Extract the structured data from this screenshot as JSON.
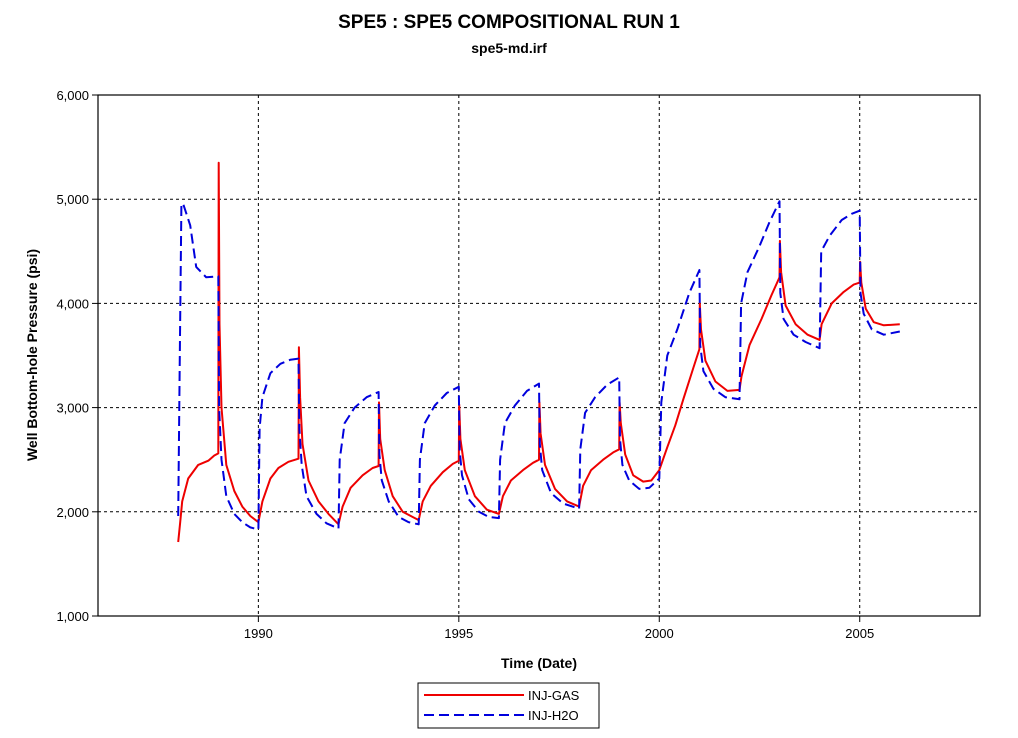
{
  "chart_data": {
    "type": "line",
    "title": "SPE5 :  SPE5 COMPOSITIONAL RUN 1",
    "subtitle": "spe5-md.irf",
    "xlabel": "Time (Date)",
    "ylabel": "Well Bottom-hole Pressure (psi)",
    "xlim": [
      1986.0,
      2008.0
    ],
    "ylim": [
      1000,
      6000
    ],
    "x_ticks": [
      1990,
      1995,
      2000,
      2005
    ],
    "x_tick_labels": [
      "1990",
      "1995",
      "2000",
      "2005"
    ],
    "y_ticks": [
      1000,
      2000,
      3000,
      4000,
      5000,
      6000
    ],
    "y_tick_labels": [
      "1,000",
      "2,000",
      "3,000",
      "4,000",
      "5,000",
      "6,000"
    ],
    "grid": true,
    "legend_position": "bottom-center",
    "series": [
      {
        "name": "INJ-GAS",
        "color": "#ee0000",
        "style": "solid",
        "points": [
          [
            1988.0,
            1710
          ],
          [
            1988.05,
            1900
          ],
          [
            1988.1,
            2100
          ],
          [
            1988.25,
            2320
          ],
          [
            1988.5,
            2450
          ],
          [
            1988.75,
            2490
          ],
          [
            1988.9,
            2540
          ],
          [
            1989.0,
            2560
          ],
          [
            1989.01,
            5350
          ],
          [
            1989.03,
            3800
          ],
          [
            1989.08,
            3000
          ],
          [
            1989.2,
            2450
          ],
          [
            1989.4,
            2200
          ],
          [
            1989.6,
            2050
          ],
          [
            1989.8,
            1960
          ],
          [
            1990.0,
            1900
          ],
          [
            1990.1,
            2100
          ],
          [
            1990.3,
            2320
          ],
          [
            1990.5,
            2420
          ],
          [
            1990.75,
            2480
          ],
          [
            1991.0,
            2510
          ],
          [
            1991.01,
            3580
          ],
          [
            1991.04,
            3100
          ],
          [
            1991.1,
            2650
          ],
          [
            1991.25,
            2300
          ],
          [
            1991.5,
            2100
          ],
          [
            1991.75,
            1980
          ],
          [
            1992.0,
            1880
          ],
          [
            1992.1,
            2050
          ],
          [
            1992.3,
            2230
          ],
          [
            1992.6,
            2350
          ],
          [
            1992.85,
            2420
          ],
          [
            1993.0,
            2440
          ],
          [
            1993.01,
            3050
          ],
          [
            1993.04,
            2700
          ],
          [
            1993.15,
            2400
          ],
          [
            1993.35,
            2150
          ],
          [
            1993.6,
            2000
          ],
          [
            1993.85,
            1950
          ],
          [
            1994.0,
            1920
          ],
          [
            1994.1,
            2100
          ],
          [
            1994.3,
            2250
          ],
          [
            1994.6,
            2380
          ],
          [
            1994.85,
            2460
          ],
          [
            1995.0,
            2490
          ],
          [
            1995.01,
            3030
          ],
          [
            1995.04,
            2700
          ],
          [
            1995.15,
            2400
          ],
          [
            1995.4,
            2150
          ],
          [
            1995.7,
            2020
          ],
          [
            1996.0,
            1980
          ],
          [
            1996.1,
            2150
          ],
          [
            1996.3,
            2300
          ],
          [
            1996.6,
            2400
          ],
          [
            1996.85,
            2470
          ],
          [
            1997.0,
            2500
          ],
          [
            1997.01,
            3050
          ],
          [
            1997.04,
            2750
          ],
          [
            1997.15,
            2450
          ],
          [
            1997.4,
            2220
          ],
          [
            1997.7,
            2100
          ],
          [
            1998.0,
            2050
          ],
          [
            1998.1,
            2250
          ],
          [
            1998.3,
            2400
          ],
          [
            1998.6,
            2500
          ],
          [
            1998.85,
            2570
          ],
          [
            1999.0,
            2600
          ],
          [
            1999.01,
            3050
          ],
          [
            1999.04,
            2850
          ],
          [
            1999.15,
            2550
          ],
          [
            1999.35,
            2350
          ],
          [
            1999.6,
            2290
          ],
          [
            1999.8,
            2300
          ],
          [
            2000.0,
            2400
          ],
          [
            2000.2,
            2620
          ],
          [
            2000.4,
            2830
          ],
          [
            2000.6,
            3080
          ],
          [
            2000.85,
            3380
          ],
          [
            2001.0,
            3560
          ],
          [
            2001.01,
            4000
          ],
          [
            2001.04,
            3750
          ],
          [
            2001.15,
            3450
          ],
          [
            2001.4,
            3250
          ],
          [
            2001.7,
            3160
          ],
          [
            2002.0,
            3170
          ],
          [
            2002.05,
            3300
          ],
          [
            2002.25,
            3600
          ],
          [
            2002.55,
            3850
          ],
          [
            2002.8,
            4080
          ],
          [
            2003.0,
            4250
          ],
          [
            2003.01,
            4600
          ],
          [
            2003.04,
            4300
          ],
          [
            2003.15,
            3980
          ],
          [
            2003.4,
            3800
          ],
          [
            2003.7,
            3700
          ],
          [
            2004.0,
            3650
          ],
          [
            2004.05,
            3800
          ],
          [
            2004.3,
            4000
          ],
          [
            2004.6,
            4110
          ],
          [
            2004.85,
            4180
          ],
          [
            2005.0,
            4200
          ],
          [
            2005.01,
            4400
          ],
          [
            2005.04,
            4200
          ],
          [
            2005.15,
            3950
          ],
          [
            2005.35,
            3820
          ],
          [
            2005.6,
            3790
          ],
          [
            2006.0,
            3800
          ]
        ]
      },
      {
        "name": "INJ-H2O",
        "color": "#0000dd",
        "style": "dashed",
        "points": [
          [
            1988.0,
            1960
          ],
          [
            1988.04,
            3500
          ],
          [
            1988.08,
            4950
          ],
          [
            1988.12,
            4960
          ],
          [
            1988.3,
            4750
          ],
          [
            1988.45,
            4350
          ],
          [
            1988.7,
            4250
          ],
          [
            1989.0,
            4260
          ],
          [
            1989.02,
            3000
          ],
          [
            1989.08,
            2500
          ],
          [
            1989.2,
            2150
          ],
          [
            1989.4,
            1980
          ],
          [
            1989.6,
            1900
          ],
          [
            1989.8,
            1850
          ],
          [
            1990.0,
            1830
          ],
          [
            1990.03,
            2800
          ],
          [
            1990.1,
            3100
          ],
          [
            1990.3,
            3330
          ],
          [
            1990.55,
            3420
          ],
          [
            1990.8,
            3460
          ],
          [
            1991.0,
            3470
          ],
          [
            1991.02,
            2800
          ],
          [
            1991.08,
            2450
          ],
          [
            1991.2,
            2150
          ],
          [
            1991.45,
            1980
          ],
          [
            1991.7,
            1890
          ],
          [
            1992.0,
            1840
          ],
          [
            1992.03,
            2500
          ],
          [
            1992.15,
            2850
          ],
          [
            1992.4,
            3000
          ],
          [
            1992.7,
            3100
          ],
          [
            1993.0,
            3150
          ],
          [
            1993.02,
            2550
          ],
          [
            1993.08,
            2300
          ],
          [
            1993.25,
            2100
          ],
          [
            1993.5,
            1950
          ],
          [
            1993.75,
            1900
          ],
          [
            1994.0,
            1880
          ],
          [
            1994.03,
            2500
          ],
          [
            1994.15,
            2850
          ],
          [
            1994.4,
            3020
          ],
          [
            1994.7,
            3140
          ],
          [
            1995.0,
            3200
          ],
          [
            1995.02,
            2600
          ],
          [
            1995.08,
            2350
          ],
          [
            1995.25,
            2120
          ],
          [
            1995.5,
            2000
          ],
          [
            1995.75,
            1950
          ],
          [
            1996.0,
            1940
          ],
          [
            1996.03,
            2500
          ],
          [
            1996.15,
            2850
          ],
          [
            1996.4,
            3020
          ],
          [
            1996.7,
            3160
          ],
          [
            1997.0,
            3230
          ],
          [
            1997.02,
            2650
          ],
          [
            1997.08,
            2400
          ],
          [
            1997.3,
            2180
          ],
          [
            1997.6,
            2080
          ],
          [
            1998.0,
            2030
          ],
          [
            1998.03,
            2600
          ],
          [
            1998.15,
            2950
          ],
          [
            1998.4,
            3100
          ],
          [
            1998.7,
            3220
          ],
          [
            1999.0,
            3290
          ],
          [
            1999.02,
            2700
          ],
          [
            1999.08,
            2450
          ],
          [
            1999.25,
            2300
          ],
          [
            1999.5,
            2220
          ],
          [
            1999.75,
            2230
          ],
          [
            2000.0,
            2320
          ],
          [
            2000.05,
            3050
          ],
          [
            2000.2,
            3500
          ],
          [
            2000.45,
            3750
          ],
          [
            2000.75,
            4100
          ],
          [
            2001.0,
            4320
          ],
          [
            2001.02,
            3600
          ],
          [
            2001.1,
            3350
          ],
          [
            2001.35,
            3180
          ],
          [
            2001.65,
            3100
          ],
          [
            2002.0,
            3080
          ],
          [
            2002.04,
            4000
          ],
          [
            2002.2,
            4300
          ],
          [
            2002.5,
            4550
          ],
          [
            2002.75,
            4780
          ],
          [
            2003.0,
            4980
          ],
          [
            2003.02,
            4100
          ],
          [
            2003.1,
            3850
          ],
          [
            2003.35,
            3700
          ],
          [
            2003.65,
            3630
          ],
          [
            2004.0,
            3570
          ],
          [
            2004.04,
            4500
          ],
          [
            2004.25,
            4650
          ],
          [
            2004.55,
            4800
          ],
          [
            2004.8,
            4860
          ],
          [
            2005.0,
            4890
          ],
          [
            2005.02,
            4100
          ],
          [
            2005.1,
            3900
          ],
          [
            2005.3,
            3750
          ],
          [
            2005.6,
            3700
          ],
          [
            2006.0,
            3730
          ]
        ]
      }
    ]
  }
}
